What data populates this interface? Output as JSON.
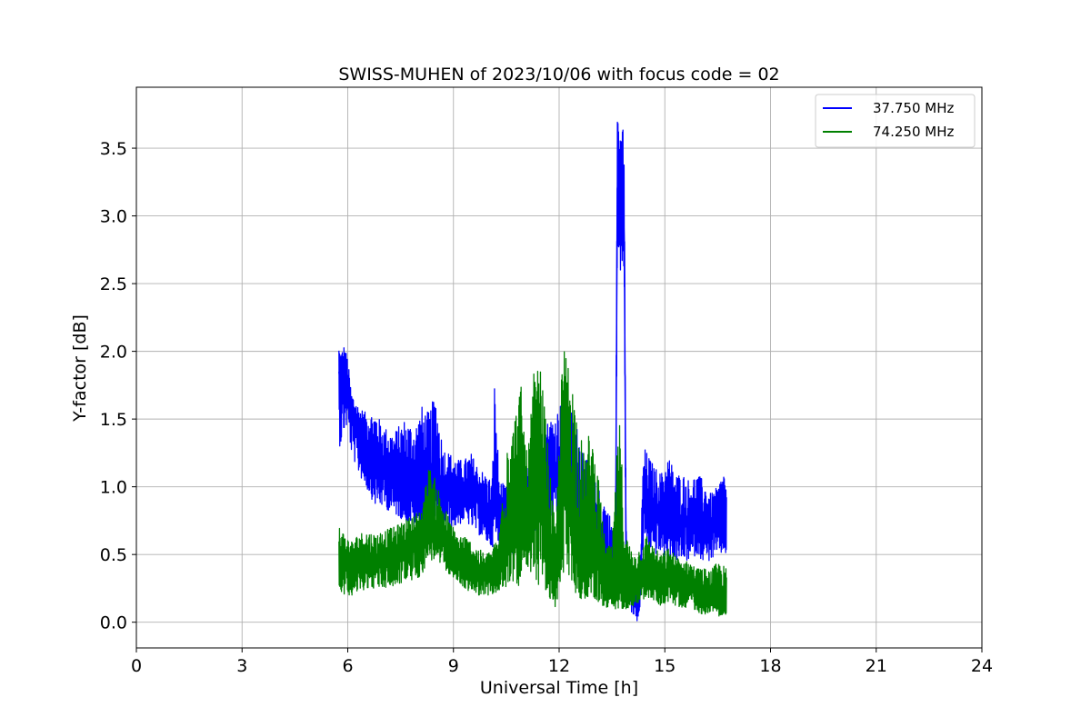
{
  "chart_data": {
    "type": "line",
    "title": "SWISS-MUHEN of 2023/10/06 with focus code = 02",
    "xlabel": "Universal Time [h]",
    "ylabel": "Y-factor [dB]",
    "xlim": [
      0,
      24
    ],
    "ylim": [
      -0.19,
      3.95
    ],
    "x_ticks": [
      "0",
      "3",
      "6",
      "9",
      "12",
      "15",
      "18",
      "21",
      "24"
    ],
    "y_ticks": [
      "0.0",
      "0.5",
      "1.0",
      "1.5",
      "2.0",
      "2.5",
      "3.0",
      "3.5"
    ],
    "grid": true,
    "legend_position": "top-right",
    "colors": {
      "series1": "#0000ff",
      "series2": "#008000"
    },
    "series": [
      {
        "name": "37.750 MHz",
        "color": "#0000ff",
        "x": [
          5.75,
          5.8,
          5.9,
          6.0,
          6.1,
          6.3,
          6.5,
          6.8,
          7.0,
          7.3,
          7.6,
          7.9,
          8.1,
          8.3,
          8.5,
          8.7,
          8.9,
          9.1,
          9.3,
          9.5,
          9.7,
          9.9,
          10.1,
          10.17,
          10.3,
          10.5,
          10.7,
          10.9,
          11.1,
          11.3,
          11.5,
          11.7,
          11.9,
          12.1,
          12.3,
          12.5,
          12.7,
          12.9,
          13.1,
          13.3,
          13.5,
          13.6,
          13.65,
          13.7,
          13.75,
          13.8,
          13.85,
          13.9,
          14.0,
          14.2,
          14.3,
          14.4,
          14.5,
          14.7,
          14.9,
          15.1,
          15.3,
          15.5,
          15.7,
          15.9,
          16.1,
          16.3,
          16.5,
          16.7,
          16.75
        ],
        "y": [
          1.85,
          1.75,
          1.8,
          1.75,
          1.55,
          1.4,
          1.3,
          1.2,
          1.15,
          1.05,
          1.05,
          1.0,
          0.98,
          1.0,
          1.0,
          0.95,
          0.95,
          0.95,
          0.95,
          0.95,
          0.9,
          0.8,
          0.75,
          1.0,
          0.75,
          0.7,
          0.7,
          0.75,
          0.8,
          0.9,
          1.0,
          1.1,
          1.05,
          1.2,
          1.15,
          0.95,
          0.8,
          0.7,
          0.65,
          0.55,
          0.45,
          0.4,
          3.2,
          3.3,
          2.9,
          3.3,
          2.8,
          0.45,
          0.25,
          0.15,
          0.2,
          0.95,
          0.85,
          0.8,
          0.8,
          0.75,
          0.7,
          0.75,
          0.7,
          0.75,
          0.7,
          0.7,
          0.72,
          0.75,
          0.75
        ],
        "upper": [
          2.05,
          2.0,
          2.05,
          1.95,
          1.7,
          1.6,
          1.55,
          1.55,
          1.45,
          1.4,
          1.5,
          1.45,
          1.6,
          1.55,
          1.7,
          1.3,
          1.25,
          1.2,
          1.2,
          1.25,
          1.15,
          1.1,
          1.05,
          1.82,
          1.05,
          1.0,
          0.95,
          1.05,
          1.15,
          1.35,
          1.4,
          1.5,
          1.55,
          1.65,
          1.6,
          1.45,
          1.3,
          1.1,
          1.0,
          0.9,
          0.75,
          0.7,
          3.75,
          3.75,
          3.5,
          3.75,
          3.35,
          0.75,
          0.45,
          0.35,
          0.5,
          1.3,
          1.25,
          1.15,
          1.1,
          1.25,
          1.1,
          1.1,
          1.05,
          1.1,
          1.05,
          0.95,
          1.0,
          1.15,
          0.95
        ],
        "lower": [
          1.3,
          1.3,
          1.4,
          1.45,
          1.25,
          1.1,
          1.0,
          0.85,
          0.85,
          0.8,
          0.75,
          0.7,
          0.7,
          0.75,
          0.75,
          0.7,
          0.7,
          0.7,
          0.75,
          0.7,
          0.65,
          0.6,
          0.55,
          0.6,
          0.55,
          0.5,
          0.5,
          0.55,
          0.6,
          0.65,
          0.7,
          0.75,
          0.7,
          0.8,
          0.75,
          0.65,
          0.55,
          0.45,
          0.4,
          0.35,
          0.3,
          0.25,
          2.6,
          2.7,
          2.35,
          2.7,
          2.4,
          0.3,
          0.1,
          0.0,
          0.05,
          0.6,
          0.55,
          0.5,
          0.5,
          0.45,
          0.45,
          0.45,
          0.45,
          0.5,
          0.45,
          0.45,
          0.5,
          0.5,
          0.5
        ]
      },
      {
        "name": "74.250 MHz",
        "color": "#008000",
        "x": [
          5.75,
          5.9,
          6.1,
          6.3,
          6.5,
          6.8,
          7.0,
          7.3,
          7.6,
          7.9,
          8.1,
          8.3,
          8.5,
          8.7,
          8.9,
          9.1,
          9.3,
          9.5,
          9.7,
          9.9,
          10.1,
          10.3,
          10.5,
          10.7,
          10.9,
          11.1,
          11.3,
          11.5,
          11.7,
          11.9,
          12.1,
          12.3,
          12.5,
          12.7,
          12.9,
          13.1,
          13.3,
          13.5,
          13.7,
          13.9,
          14.1,
          14.3,
          14.5,
          14.7,
          14.9,
          15.1,
          15.3,
          15.5,
          15.7,
          15.9,
          16.1,
          16.3,
          16.5,
          16.75
        ],
        "y": [
          0.45,
          0.45,
          0.4,
          0.45,
          0.45,
          0.45,
          0.48,
          0.5,
          0.55,
          0.55,
          0.6,
          0.8,
          0.7,
          0.6,
          0.5,
          0.45,
          0.4,
          0.38,
          0.35,
          0.33,
          0.35,
          0.4,
          0.5,
          0.9,
          0.8,
          0.7,
          1.1,
          1.05,
          0.6,
          0.3,
          1.2,
          1.1,
          0.5,
          0.35,
          0.7,
          0.45,
          0.3,
          0.3,
          0.3,
          0.32,
          0.3,
          0.35,
          0.4,
          0.35,
          0.3,
          0.35,
          0.3,
          0.3,
          0.3,
          0.25,
          0.22,
          0.22,
          0.2,
          0.2
        ],
        "upper": [
          0.75,
          0.65,
          0.6,
          0.65,
          0.68,
          0.65,
          0.68,
          0.7,
          0.75,
          0.8,
          0.85,
          1.15,
          1.05,
          0.9,
          0.75,
          0.65,
          0.65,
          0.6,
          0.55,
          0.5,
          0.55,
          0.65,
          1.5,
          1.45,
          1.8,
          1.2,
          1.9,
          1.85,
          1.25,
          0.65,
          2.05,
          1.9,
          1.6,
          1.25,
          1.45,
          1.1,
          0.6,
          0.55,
          1.55,
          0.65,
          0.5,
          0.55,
          0.65,
          0.55,
          0.5,
          0.55,
          0.5,
          0.45,
          0.45,
          0.4,
          0.4,
          0.38,
          0.45,
          0.4
        ],
        "lower": [
          0.25,
          0.2,
          0.2,
          0.2,
          0.25,
          0.25,
          0.25,
          0.25,
          0.3,
          0.3,
          0.35,
          0.45,
          0.45,
          0.4,
          0.35,
          0.3,
          0.25,
          0.22,
          0.2,
          0.2,
          0.2,
          0.22,
          0.25,
          0.3,
          0.25,
          0.3,
          0.3,
          0.25,
          0.15,
          0.1,
          0.35,
          0.3,
          0.2,
          0.15,
          0.2,
          0.15,
          0.1,
          0.05,
          0.1,
          0.1,
          0.12,
          0.15,
          0.18,
          0.15,
          0.12,
          0.15,
          0.12,
          0.1,
          0.12,
          0.08,
          0.05,
          0.08,
          0.05,
          0.02
        ]
      }
    ]
  }
}
